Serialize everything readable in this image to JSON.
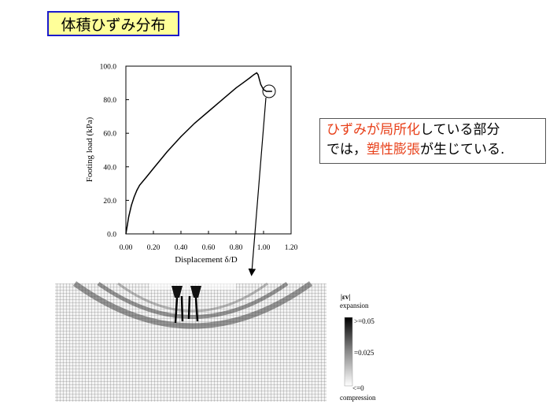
{
  "title": "体積ひずみ分布",
  "callout": {
    "line1_part1": "ひずみが局所化",
    "line1_part2": "している部分",
    "line2_part1": "では，",
    "line2_part2": "塑性膨張",
    "line2_part3": "が生じている."
  },
  "chart_data": {
    "type": "line",
    "xlabel": "Displacement δ/D",
    "ylabel": "Footing load (kPa)",
    "xlim": [
      0,
      1.2
    ],
    "ylim": [
      0,
      100
    ],
    "xticks": [
      "0.00",
      "0.20",
      "0.40",
      "0.60",
      "0.80",
      "1.00",
      "1.20"
    ],
    "yticks": [
      "0.0",
      "20.0",
      "40.0",
      "60.0",
      "80.0",
      "100.0"
    ],
    "x": [
      0.0,
      0.01,
      0.02,
      0.04,
      0.06,
      0.08,
      0.1,
      0.15,
      0.2,
      0.3,
      0.4,
      0.5,
      0.6,
      0.7,
      0.8,
      0.85,
      0.9,
      0.93,
      0.95,
      0.96,
      0.98,
      1.0,
      1.02,
      1.04,
      1.06
    ],
    "values": [
      0,
      5,
      10,
      17,
      22,
      26,
      29,
      34,
      39,
      49,
      58,
      66,
      73,
      80,
      87,
      90,
      93,
      95,
      96,
      95,
      89,
      86,
      85,
      85,
      85
    ],
    "grid": false
  },
  "colorbar": {
    "symbol": "|εv|",
    "top_label": "expansion",
    "bottom_label": "compression",
    "max_label": ">=0.05",
    "mid_label": "=0.025",
    "min_label": "<=0"
  },
  "colors": {
    "title_bg": "#ffff99",
    "title_border": "#1a1acc",
    "highlight": "#e8401a"
  }
}
